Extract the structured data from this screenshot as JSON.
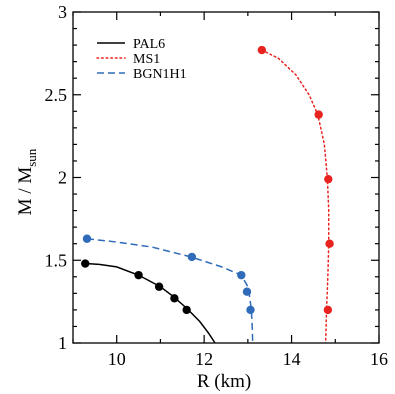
{
  "chart_data": {
    "type": "line",
    "title": "",
    "xlabel": "R (km)",
    "ylabel_main": "M / M",
    "ylabel_sub": "sun",
    "xlim": [
      9,
      16
    ],
    "ylim": [
      1,
      3
    ],
    "xticks": [
      10,
      12,
      14,
      16
    ],
    "yticks": [
      1,
      1.5,
      2,
      2.5,
      3
    ],
    "xtick_labels": [
      "10",
      "12",
      "14",
      "16"
    ],
    "ytick_labels": [
      "1",
      "1.5",
      "2",
      "2.5",
      "3"
    ],
    "grid": false,
    "legend_position": "top-left",
    "series": [
      {
        "name": "PAL6",
        "color": "#000000",
        "style": "solid",
        "curve": [
          [
            9.28,
            1.48
          ],
          [
            9.6,
            1.475
          ],
          [
            10.0,
            1.46
          ],
          [
            10.5,
            1.41
          ],
          [
            11.0,
            1.34
          ],
          [
            11.3,
            1.28
          ],
          [
            11.6,
            1.21
          ],
          [
            11.9,
            1.13
          ],
          [
            12.1,
            1.06
          ],
          [
            12.25,
            1.0
          ]
        ],
        "markers": [
          [
            9.28,
            1.48
          ],
          [
            10.5,
            1.41
          ],
          [
            10.97,
            1.34
          ],
          [
            11.32,
            1.27
          ],
          [
            11.6,
            1.2
          ]
        ]
      },
      {
        "name": "MS1",
        "color": "#e8231f",
        "style": "dotted",
        "curve": [
          [
            13.32,
            2.77
          ],
          [
            13.7,
            2.72
          ],
          [
            14.1,
            2.62
          ],
          [
            14.4,
            2.5
          ],
          [
            14.6,
            2.38
          ],
          [
            14.75,
            2.2
          ],
          [
            14.82,
            1.99
          ],
          [
            14.85,
            1.8
          ],
          [
            14.85,
            1.6
          ],
          [
            14.83,
            1.4
          ],
          [
            14.8,
            1.2
          ],
          [
            14.78,
            1.0
          ]
        ],
        "markers": [
          [
            13.32,
            2.77
          ],
          [
            14.62,
            2.38
          ],
          [
            14.84,
            1.99
          ],
          [
            14.87,
            1.6
          ],
          [
            14.83,
            1.2
          ]
        ]
      },
      {
        "name": "BGN1H1",
        "color": "#2f6bb8",
        "style": "dashed",
        "curve": [
          [
            9.32,
            1.63
          ],
          [
            10.0,
            1.61
          ],
          [
            10.8,
            1.58
          ],
          [
            11.7,
            1.52
          ],
          [
            12.4,
            1.46
          ],
          [
            12.85,
            1.41
          ],
          [
            12.98,
            1.35
          ],
          [
            13.03,
            1.3
          ],
          [
            13.08,
            1.2
          ],
          [
            13.1,
            1.1
          ],
          [
            13.11,
            1.0
          ]
        ],
        "markers": [
          [
            9.32,
            1.63
          ],
          [
            11.72,
            1.52
          ],
          [
            12.85,
            1.41
          ],
          [
            12.98,
            1.31
          ],
          [
            13.06,
            1.2
          ]
        ]
      }
    ]
  }
}
